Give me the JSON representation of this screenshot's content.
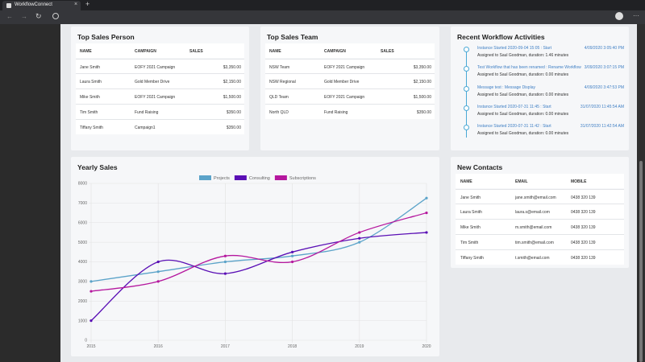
{
  "browser": {
    "tab_title": "WorkflowConnect"
  },
  "top_sales_person": {
    "title": "Top Sales Person",
    "columns": [
      "NAME",
      "CAMPAIGN",
      "SALES"
    ],
    "rows": [
      [
        "Jane Smith",
        "EOFY 2021 Campaign",
        "$3,350.00"
      ],
      [
        "Laura Smith",
        "Gold Member Drive",
        "$2,150.00"
      ],
      [
        "Mike Smith",
        "EOFY 2021 Campaign",
        "$1,500.00"
      ],
      [
        "Tim Smith",
        "Fund Raising",
        "$350.00"
      ],
      [
        "Tiffany Smith",
        "Campaign1",
        "$350.00"
      ]
    ]
  },
  "top_sales_team": {
    "title": "Top Sales Team",
    "columns": [
      "NAME",
      "CAMPAIGN",
      "SALES"
    ],
    "rows": [
      [
        "NSW Team",
        "EOFY 2021 Campaign",
        "$3,350.00"
      ],
      [
        "NSW Regional",
        "Gold Member Drive",
        "$2,150.00"
      ],
      [
        "QLD Team",
        "EOFY 2021 Campaign",
        "$1,500.00"
      ],
      [
        "North QLD",
        "Fund Raising",
        "$350.00"
      ]
    ]
  },
  "recent_workflow_activities": {
    "title": "Recent Workflow Activities",
    "items": [
      {
        "title": "Instance Started 2020-09-04 15:05 : Start",
        "date": "4/09/2020 3:05:40 PM",
        "detail": "Assigned to Saul Goodman, duration: 1.46 minutes"
      },
      {
        "title": "Test Workflow that has been renamed : Rename Workflow",
        "date": "3/09/2020 3:07:15 PM",
        "detail": "Assigned to Saul Goodman, duration: 0.00 minutes"
      },
      {
        "title": "Message test : Message Display",
        "date": "4/09/2020 3:47:53 PM",
        "detail": "Assigned to Saul Goodman, duration: 0.00 minutes"
      },
      {
        "title": "Instance Started 2020-07-31 11:45 : Start",
        "date": "31/07/2020 11:45:54 AM",
        "detail": "Assigned to Saul Goodman, duration: 0.00 minutes"
      },
      {
        "title": "Instance Started 2020-07-31 11:42 : Start",
        "date": "31/07/2020 11:42:54 AM",
        "detail": "Assigned to Saul Goodman, duration: 0.00 minutes"
      }
    ]
  },
  "new_contacts": {
    "title": "New Contacts",
    "columns": [
      "NAME",
      "EMAIL",
      "MOBILE"
    ],
    "rows": [
      [
        "Jane Smith",
        "jane.smith@email.com",
        "0438 320 139"
      ],
      [
        "Laura Smith",
        "laura.s@email.com",
        "0438 320 139"
      ],
      [
        "Mike Smith",
        "m.smith@email.com",
        "0438 320 139"
      ],
      [
        "Tim Smith",
        "tim.smith@email.com",
        "0438 320 139"
      ],
      [
        "Tiffany Smith",
        "t.smith@email.com",
        "0438 320 139"
      ]
    ]
  },
  "chart_data": {
    "type": "line",
    "title": "Yearly Sales",
    "categories": [
      "2015",
      "2016",
      "2017",
      "2018",
      "2019",
      "2020"
    ],
    "series": [
      {
        "name": "Projects",
        "color": "#5ba3c9",
        "values": [
          3000,
          3500,
          4000,
          4300,
          5000,
          7250
        ]
      },
      {
        "name": "Consulting",
        "color": "#5a0fb5",
        "values": [
          1000,
          4000,
          3400,
          4500,
          5200,
          5500
        ]
      },
      {
        "name": "Subscriptions",
        "color": "#b5179e",
        "values": [
          2500,
          3000,
          4300,
          4000,
          5500,
          6500
        ]
      }
    ],
    "ylim": [
      0,
      8000
    ],
    "yticks": [
      0,
      1000,
      2000,
      3000,
      4000,
      5000,
      6000,
      7000,
      8000
    ],
    "grid": true
  }
}
